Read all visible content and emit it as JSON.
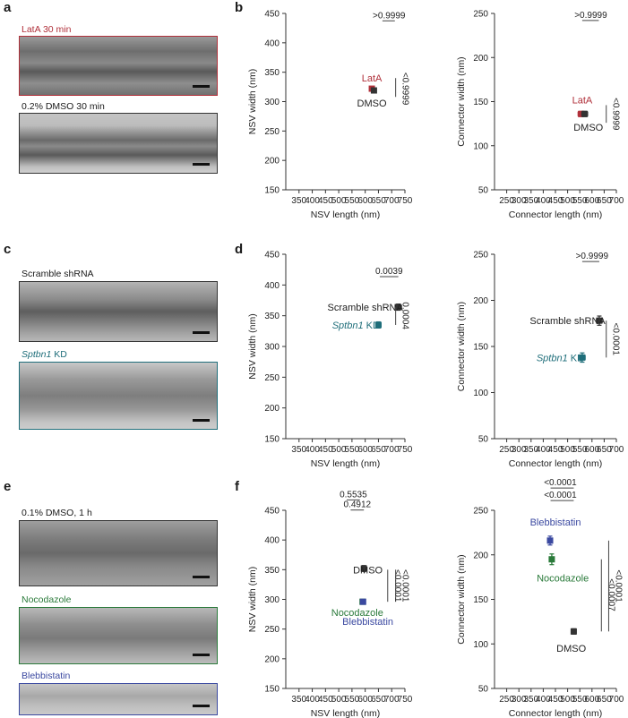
{
  "panel_letters": {
    "a": "a",
    "b": "b",
    "c": "c",
    "d": "d",
    "e": "e",
    "f": "f"
  },
  "images": {
    "a1": {
      "label": "LatA 30 min",
      "color": "#b0303a"
    },
    "a2": {
      "label": "0.2% DMSO 30 min",
      "color": "#222222"
    },
    "c1": {
      "label": "Scramble shRNA",
      "color": "#222222"
    },
    "c2": {
      "label_italic": "Sptbn1",
      "label_rest": " KD",
      "color": "#1f6e7a"
    },
    "e1": {
      "label": "0.1% DMSO, 1 h",
      "color": "#222222"
    },
    "e2": {
      "label": "Nocodazole",
      "color": "#2a7a3a"
    },
    "e3": {
      "label": "Blebbistatin",
      "color": "#3a48a0"
    }
  },
  "chart_data": [
    {
      "id": "b_left",
      "type": "scatter",
      "xlabel": "NSV length (nm)",
      "ylabel": "NSV width (nm)",
      "xlim": [
        300,
        750
      ],
      "ylim": [
        150,
        450
      ],
      "xticks": [
        350,
        400,
        450,
        500,
        550,
        600,
        650,
        700,
        750
      ],
      "yticks": [
        150,
        200,
        250,
        300,
        350,
        400,
        450
      ],
      "points": [
        {
          "name": "LatA",
          "x": 625,
          "y": 322,
          "xerr": 6,
          "yerr": 3,
          "color": "#b0303a"
        },
        {
          "name": "DMSO",
          "x": 633,
          "y": 319,
          "xerr": 8,
          "yerr": 3,
          "color": "#333333"
        }
      ],
      "annotations": [
        {
          "text": "LatA",
          "x": 625,
          "y": 340,
          "color": "#b0303a"
        },
        {
          "text": "DMSO",
          "x": 625,
          "y": 298,
          "color": "#222222"
        },
        {
          "text": ">0.9999",
          "x": 690,
          "y": 442,
          "kind": "top",
          "line": [
            665,
            712
          ]
        },
        {
          "text": "<0.9999",
          "x": 742,
          "y": 322,
          "kind": "vertical",
          "line": [
            308,
            340
          ]
        }
      ]
    },
    {
      "id": "b_right",
      "type": "scatter",
      "xlabel": "Connector length (nm)",
      "ylabel": "Connector width (nm)",
      "xlim": [
        200,
        700
      ],
      "ylim": [
        50,
        250
      ],
      "xticks": [
        250,
        300,
        350,
        400,
        450,
        500,
        550,
        600,
        650,
        700
      ],
      "yticks": [
        50,
        100,
        150,
        200,
        250
      ],
      "points": [
        {
          "name": "LatA",
          "x": 555,
          "y": 136,
          "xerr": 12,
          "yerr": 3,
          "color": "#b0303a"
        },
        {
          "name": "DMSO",
          "x": 570,
          "y": 136,
          "xerr": 12,
          "yerr": 3,
          "color": "#333333"
        }
      ],
      "annotations": [
        {
          "text": "LatA",
          "x": 560,
          "y": 152,
          "color": "#b0303a"
        },
        {
          "text": "DMSO",
          "x": 585,
          "y": 121,
          "color": "#222222"
        },
        {
          "text": ">0.9999",
          "x": 595,
          "y": 245,
          "kind": "top",
          "line": [
            560,
            628
          ]
        },
        {
          "text": "<0.9999",
          "x": 688,
          "y": 136,
          "kind": "vertical",
          "line": [
            126,
            146
          ]
        }
      ]
    },
    {
      "id": "d_left",
      "type": "scatter",
      "xlabel": "NSV length (nm)",
      "ylabel": "NSV width (nm)",
      "xlim": [
        300,
        750
      ],
      "ylim": [
        150,
        450
      ],
      "xticks": [
        350,
        400,
        450,
        500,
        550,
        600,
        650,
        700,
        750
      ],
      "yticks": [
        150,
        200,
        250,
        300,
        350,
        400,
        450
      ],
      "points": [
        {
          "name": "Scramble shRNA",
          "x": 725,
          "y": 364,
          "xerr": 12,
          "yerr": 5,
          "color": "#333333"
        },
        {
          "name": "Sptbn1 KD",
          "x": 650,
          "y": 335,
          "xerr": 10,
          "yerr": 5,
          "color": "#1f6e7a"
        }
      ],
      "annotations": [
        {
          "text": "Scramble shRNA",
          "x": 600,
          "y": 364,
          "color": "#222222"
        },
        {
          "text_italic": "Sptbn1",
          "text": " KD",
          "x": 565,
          "y": 335,
          "color": "#1f6e7a"
        },
        {
          "text": "0.0039",
          "x": 690,
          "y": 418,
          "kind": "top",
          "line": [
            655,
            725
          ]
        },
        {
          "text": "0.0004",
          "x": 742,
          "y": 350,
          "kind": "vertical",
          "line": [
            335,
            364
          ]
        }
      ]
    },
    {
      "id": "d_right",
      "type": "scatter",
      "xlabel": "Connector length (nm)",
      "ylabel": "Connector width (nm)",
      "xlim": [
        200,
        700
      ],
      "ylim": [
        50,
        250
      ],
      "xticks": [
        250,
        300,
        350,
        400,
        450,
        500,
        550,
        600,
        650,
        700
      ],
      "yticks": [
        50,
        100,
        150,
        200,
        250
      ],
      "points": [
        {
          "name": "Scramble shRNA",
          "x": 630,
          "y": 178,
          "xerr": 12,
          "yerr": 5,
          "color": "#333333"
        },
        {
          "name": "Sptbn1 KD",
          "x": 560,
          "y": 138,
          "xerr": 12,
          "yerr": 5,
          "color": "#1f6e7a"
        }
      ],
      "annotations": [
        {
          "text": "Scramble shRNA",
          "x": 500,
          "y": 178,
          "color": "#222222"
        },
        {
          "text_italic": "Sptbn1",
          "text": " KD",
          "x": 470,
          "y": 138,
          "color": "#1f6e7a"
        },
        {
          "text": ">0.9999",
          "x": 600,
          "y": 245,
          "kind": "top",
          "line": [
            560,
            630
          ]
        },
        {
          "text": "<0.0001",
          "x": 688,
          "y": 158,
          "kind": "vertical",
          "line": [
            138,
            178
          ]
        }
      ]
    },
    {
      "id": "f_left",
      "type": "scatter",
      "xlabel": "NSV length (nm)",
      "ylabel": "NSV width (nm)",
      "xlim": [
        300,
        750
      ],
      "ylim": [
        150,
        450
      ],
      "xticks": [
        350,
        400,
        450,
        500,
        550,
        600,
        650,
        700,
        750
      ],
      "yticks": [
        150,
        200,
        250,
        300,
        350,
        400,
        450
      ],
      "points": [
        {
          "name": "DMSO",
          "x": 595,
          "y": 352,
          "xerr": 7,
          "yerr": 5,
          "color": "#333333"
        },
        {
          "name": "Nocodazole",
          "x": 590,
          "y": 296,
          "xerr": 5,
          "yerr": 3,
          "color": "#2a7a3a"
        },
        {
          "name": "Blebbistatin",
          "x": 592,
          "y": 296,
          "xerr": 5,
          "yerr": 3,
          "color": "#3a48a0"
        }
      ],
      "annotations": [
        {
          "text": "DMSO",
          "x": 610,
          "y": 350,
          "color": "#222222"
        },
        {
          "text": "Nocodazole",
          "x": 570,
          "y": 278,
          "color": "#2a7a3a"
        },
        {
          "text": "Blebbistatin",
          "x": 610,
          "y": 263,
          "color": "#3a48a0"
        },
        {
          "text": "0.5535",
          "x": 555,
          "y": 472,
          "kind": "top",
          "line": [
            530,
            580
          ]
        },
        {
          "text": "0.4912",
          "x": 570,
          "y": 455,
          "kind": "top",
          "line": [
            545,
            595
          ]
        },
        {
          "text": "<0.0001",
          "x": 712,
          "y": 323,
          "kind": "vertical",
          "line": [
            296,
            350
          ]
        },
        {
          "text": "<0.0001",
          "x": 742,
          "y": 323,
          "kind": "vertical",
          "line": [
            296,
            350
          ]
        }
      ]
    },
    {
      "id": "f_right",
      "type": "scatter",
      "xlabel": "Connector length (nm)",
      "ylabel": "Connector width (nm)",
      "xlim": [
        200,
        700
      ],
      "ylim": [
        50,
        250
      ],
      "xticks": [
        250,
        300,
        350,
        400,
        450,
        500,
        550,
        600,
        650,
        700
      ],
      "yticks": [
        50,
        100,
        150,
        200,
        250
      ],
      "points": [
        {
          "name": "Blebbistatin",
          "x": 428,
          "y": 216,
          "xerr": 6,
          "yerr": 5,
          "color": "#3a48a0"
        },
        {
          "name": "Nocodazole",
          "x": 435,
          "y": 195,
          "xerr": 6,
          "yerr": 6,
          "color": "#2a7a3a"
        },
        {
          "name": "DMSO",
          "x": 525,
          "y": 114,
          "xerr": 10,
          "yerr": 3,
          "color": "#333333"
        }
      ],
      "annotations": [
        {
          "text": "Blebbistatin",
          "x": 450,
          "y": 237,
          "color": "#3a48a0"
        },
        {
          "text": "Nocodazole",
          "x": 480,
          "y": 174,
          "color": "#2a7a3a"
        },
        {
          "text": "DMSO",
          "x": 515,
          "y": 95,
          "color": "#222222"
        },
        {
          "text": "<0.0001",
          "x": 470,
          "y": 278,
          "kind": "top",
          "line": [
            430,
            525
          ]
        },
        {
          "text": "<0.0001",
          "x": 470,
          "y": 264,
          "kind": "top",
          "line": [
            430,
            525
          ]
        },
        {
          "text": "<0.0007",
          "x": 668,
          "y": 155,
          "kind": "vertical",
          "line": [
            114,
            195
          ]
        },
        {
          "text": "<0.0001",
          "x": 698,
          "y": 165,
          "kind": "vertical",
          "line": [
            114,
            216
          ]
        }
      ]
    }
  ]
}
